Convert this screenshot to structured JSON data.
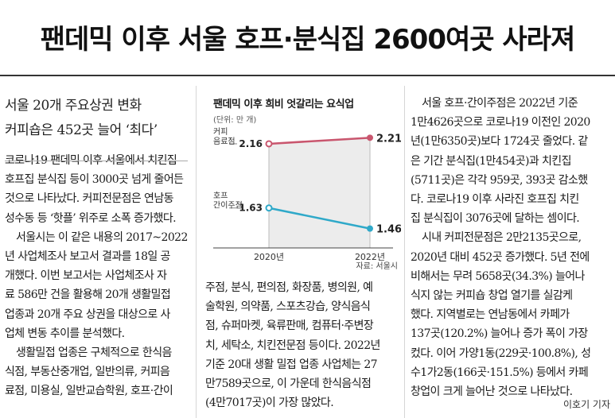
{
  "headline": "팬데믹 이후 서울 호프·분식집 2600여곳 사라져",
  "subheads": [
    "서울 20개 주요상권 변화",
    "커피숍은 452곳 늘어 ‘최다’"
  ],
  "col1_lines": [
    "코로나19 팬데믹 이후 서울에서 치킨집",
    "호프집 분식집 등이 3000곳 넘게 줄어든",
    "것으로 나타났다. 커피전문점은 연남동",
    "성수동 등 ‘핫플’ 위주로 소폭 증가했다.",
    "서울시는 이 같은 내용의 2017~2022",
    "년 사업체조사 보고서 결과를 18일 공",
    "개했다. 이번 보고서는 사업체조사 자",
    "료 586만 건을 활용해 20개 생활밀접",
    "업종과 20개 주요 상권을 대상으로 사",
    "업체 변동 추이를 분석했다.",
    "생활밀접 업종은 구체적으로 한식음",
    "식점, 부동산중개업, 일반의류, 커피음",
    "료점, 미용실, 일반교습학원, 호프·간이"
  ],
  "col1_indent": [
    false,
    false,
    false,
    false,
    true,
    false,
    false,
    false,
    false,
    false,
    true,
    false,
    false
  ],
  "col2_lines": [
    "주점, 분식, 편의점, 화장품, 병의원, 예",
    "술학원, 의약품, 스포츠강습, 양식음식",
    "점, 슈퍼마켓, 육류판매, 컴퓨터·주변장",
    "치, 세탁소, 치킨전문점 등이다. 2022년",
    "기준 20대 생활 밀접 업종 사업체는 27",
    "만7589곳으로, 이 가운데 한식음식점",
    "(4만7017곳)이 가장 많았다."
  ],
  "col3_lines": [
    "서울 호프·간이주점은 2022년 기준",
    "1만4626곳으로 코로나19 이전인 2020",
    "년(1만6350곳)보다 1724곳 줄었다. 같",
    "은 기간 분식집(1만454곳)과 치킨집",
    "(5711곳)은 각각 959곳, 393곳 감소했",
    "다. 코로나19 이후 사라진 호프집 치킨",
    "집 분식집이 3076곳에 달하는 셈이다.",
    "시내 커피전문점은 2만2135곳으로,",
    "2020년 대비 452곳 증가했다. 5년 전에",
    "비해서는 무려 5658곳(34.3%) 늘어나",
    "식지 않는 커피숍 창업 열기를 실감케",
    "했다. 지역별로는 연남동에서 카페가",
    "137곳(120.2%) 늘어나 증가 폭이 가장",
    "컸다. 이어 가양1동(229곳·100.8%), 성",
    "수1가2동(166곳·151.5%) 등에서 카페",
    "창업이 크게 늘어난 것으로 나타났다."
  ],
  "col3_indent": [
    true,
    false,
    false,
    false,
    false,
    false,
    false,
    true,
    false,
    false,
    false,
    false,
    false,
    false,
    false,
    false
  ],
  "byline": "이호기 기자",
  "chart_data": {
    "type": "line",
    "title": "팬데믹 이후 희비 엇갈리는 요식업",
    "unit": "(단위: 만 개)",
    "source": "자료: 서울시",
    "categories": [
      "2020년",
      "2022년"
    ],
    "series": [
      {
        "name": "커피 음료점",
        "values": [
          2.16,
          2.21
        ],
        "color": "#c9566e"
      },
      {
        "name": "호프 간이주점",
        "values": [
          1.63,
          1.46
        ],
        "color": "#2fa9c9"
      }
    ],
    "value_labels": [
      [
        "2.16",
        "2.21"
      ],
      [
        "1.63",
        "1.46"
      ]
    ]
  }
}
